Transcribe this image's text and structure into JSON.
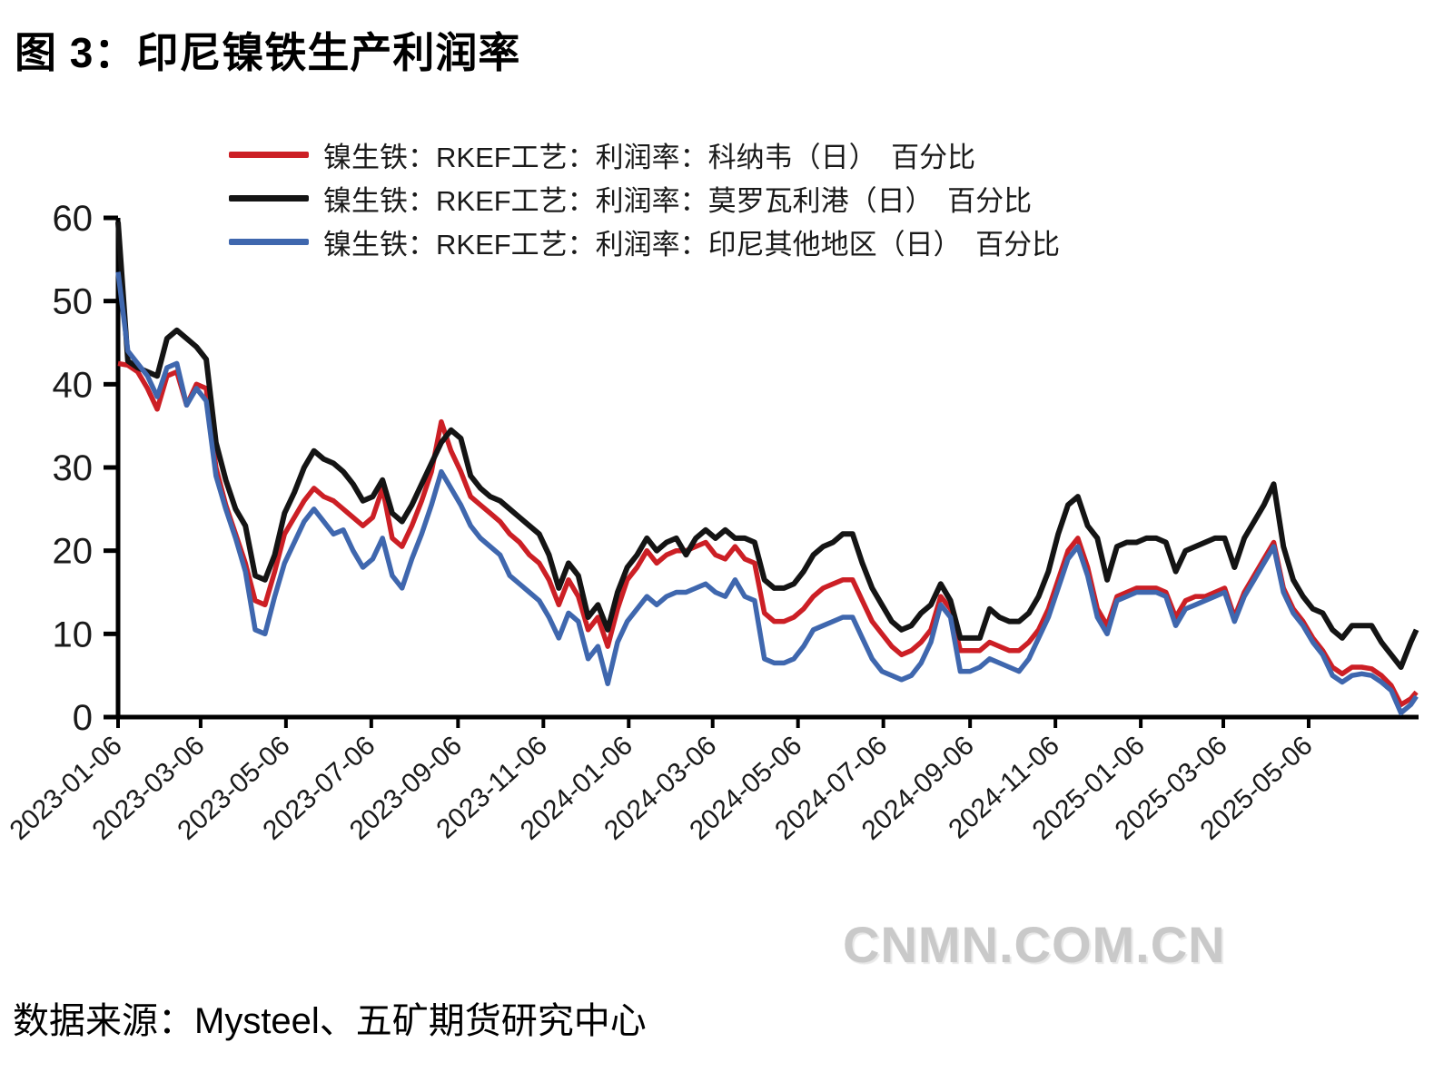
{
  "page": {
    "title": "图 3：印尼镍铁生产利润率",
    "source": "数据来源：Mysteel、五矿期货研究中心",
    "watermark": "CNMN.COM.CN"
  },
  "colors": {
    "kenawei_red": "#cc1f25",
    "morowali_black": "#141414",
    "other_blue": "#3f67ae",
    "axis": "#000000",
    "watermark_gray": "#c9c9c9"
  },
  "chart_data": {
    "type": "line",
    "title": "图 3：印尼镍铁生产利润率",
    "xlabel": "",
    "ylabel": "",
    "ylim": [
      0,
      60
    ],
    "y_ticks": [
      0,
      10,
      20,
      30,
      40,
      50,
      60
    ],
    "grid": false,
    "legend_position": "top-center",
    "x_tick_labels": [
      "2023-01-06",
      "2023-03-06",
      "2023-05-06",
      "2023-07-06",
      "2023-09-06",
      "2023-11-06",
      "2024-01-06",
      "2024-03-06",
      "2024-05-06",
      "2024-07-06",
      "2024-09-06",
      "2024-11-06",
      "2025-01-06",
      "2025-03-06",
      "2025-05-06"
    ],
    "x": [
      "2023-01-06",
      "2023-01-13",
      "2023-01-20",
      "2023-01-27",
      "2023-02-03",
      "2023-02-10",
      "2023-02-17",
      "2023-02-24",
      "2023-03-03",
      "2023-03-10",
      "2023-03-17",
      "2023-03-24",
      "2023-03-31",
      "2023-04-07",
      "2023-04-14",
      "2023-04-21",
      "2023-04-28",
      "2023-05-05",
      "2023-05-12",
      "2023-05-19",
      "2023-05-26",
      "2023-06-02",
      "2023-06-09",
      "2023-06-16",
      "2023-06-23",
      "2023-06-30",
      "2023-07-07",
      "2023-07-14",
      "2023-07-21",
      "2023-07-28",
      "2023-08-04",
      "2023-08-11",
      "2023-08-18",
      "2023-08-25",
      "2023-09-01",
      "2023-09-08",
      "2023-09-15",
      "2023-09-22",
      "2023-09-29",
      "2023-10-06",
      "2023-10-13",
      "2023-10-20",
      "2023-10-27",
      "2023-11-03",
      "2023-11-10",
      "2023-11-17",
      "2023-11-24",
      "2023-12-01",
      "2023-12-08",
      "2023-12-15",
      "2023-12-22",
      "2023-12-29",
      "2024-01-05",
      "2024-01-12",
      "2024-01-19",
      "2024-01-26",
      "2024-02-02",
      "2024-02-09",
      "2024-02-16",
      "2024-02-23",
      "2024-03-01",
      "2024-03-08",
      "2024-03-15",
      "2024-03-22",
      "2024-03-29",
      "2024-04-05",
      "2024-04-12",
      "2024-04-19",
      "2024-04-26",
      "2024-05-03",
      "2024-05-10",
      "2024-05-17",
      "2024-05-24",
      "2024-05-31",
      "2024-06-07",
      "2024-06-14",
      "2024-06-21",
      "2024-06-28",
      "2024-07-05",
      "2024-07-12",
      "2024-07-19",
      "2024-07-26",
      "2024-08-02",
      "2024-08-09",
      "2024-08-16",
      "2024-08-23",
      "2024-08-30",
      "2024-09-06",
      "2024-09-13",
      "2024-09-20",
      "2024-09-27",
      "2024-10-04",
      "2024-10-11",
      "2024-10-18",
      "2024-10-25",
      "2024-11-01",
      "2024-11-08",
      "2024-11-15",
      "2024-11-22",
      "2024-11-29",
      "2024-12-06",
      "2024-12-13",
      "2024-12-20",
      "2024-12-27",
      "2025-01-03",
      "2025-01-10",
      "2025-01-17",
      "2025-01-24",
      "2025-01-31",
      "2025-02-07",
      "2025-02-14",
      "2025-02-21",
      "2025-02-28",
      "2025-03-07",
      "2025-03-14",
      "2025-03-21",
      "2025-03-28",
      "2025-04-04",
      "2025-04-11",
      "2025-04-18",
      "2025-04-25",
      "2025-05-02",
      "2025-05-09",
      "2025-05-16",
      "2025-05-23",
      "2025-05-30",
      "2025-06-06",
      "2025-06-13",
      "2025-06-20",
      "2025-06-27",
      "2025-07-04",
      "2025-07-11",
      "2025-07-18",
      "2025-07-22"
    ],
    "series": [
      {
        "name": "镍生铁：RKEF工艺：利润率：科纳韦（日）　百分比",
        "color_key": "kenawei_red",
        "color": "#cc1f25",
        "values": [
          42.5,
          42.3,
          41.5,
          39.5,
          37,
          41,
          41.5,
          37.5,
          40,
          39.5,
          30,
          25.5,
          22,
          18.5,
          14,
          13.5,
          17.5,
          22,
          24,
          26,
          27.5,
          26.5,
          26,
          25,
          24,
          23,
          24,
          27.5,
          21.5,
          20.5,
          23,
          26,
          29.5,
          35.5,
          32,
          29.5,
          26.5,
          25.5,
          24.5,
          23.5,
          22,
          21,
          19.5,
          18.5,
          16.5,
          13.5,
          16.5,
          14.5,
          10.5,
          12,
          8.5,
          13,
          16.5,
          18,
          20,
          18.5,
          19.5,
          20,
          20,
          20.5,
          21,
          19.5,
          19,
          20.5,
          19,
          18.5,
          12.5,
          11.5,
          11.5,
          12,
          13,
          14.5,
          15.5,
          16,
          16.5,
          16.5,
          14,
          11.5,
          10,
          8.5,
          7.5,
          8,
          9,
          10.5,
          14.5,
          13,
          8,
          8,
          8,
          9,
          8.5,
          8,
          8,
          9,
          10.5,
          13,
          16.5,
          20,
          21.5,
          18,
          13,
          11,
          14.5,
          15,
          15.5,
          15.5,
          15.5,
          15,
          12,
          14,
          14.5,
          14.5,
          15,
          15.5,
          12,
          15,
          17,
          19,
          21,
          15.5,
          13,
          11.5,
          9.5,
          8,
          6,
          5.2,
          6,
          6,
          5.8,
          5,
          3.8,
          1.5,
          2.2,
          3
        ]
      },
      {
        "name": "镍生铁：RKEF工艺：利润率：莫罗瓦利港（日）　百分比",
        "color_key": "morowali_black",
        "color": "#141414",
        "values": [
          59.5,
          42.8,
          42,
          41.5,
          41,
          45.5,
          46.5,
          45.5,
          44.5,
          43,
          33,
          28.5,
          25,
          23,
          17,
          16.5,
          19.5,
          24.5,
          27,
          30,
          32,
          31,
          30.5,
          29.5,
          28,
          26,
          26.5,
          28.5,
          24.5,
          23.5,
          25.5,
          28,
          30.5,
          33,
          34.5,
          33.5,
          29,
          27.5,
          26.5,
          26,
          25,
          24,
          23,
          22,
          19.5,
          15.5,
          18.5,
          17,
          12,
          13.5,
          10.5,
          15,
          18,
          19.5,
          21.5,
          20,
          21,
          21.5,
          19.5,
          21.5,
          22.5,
          21.5,
          22.5,
          21.5,
          21.5,
          21,
          16.5,
          15.5,
          15.5,
          16,
          17.5,
          19.5,
          20.5,
          21,
          22,
          22,
          18.5,
          15.5,
          13.5,
          11.5,
          10.5,
          11,
          12.5,
          13.5,
          16,
          14,
          9.5,
          9.5,
          9.5,
          13,
          12,
          11.5,
          11.5,
          12.5,
          14.5,
          17.5,
          22,
          25.5,
          26.5,
          23,
          21.5,
          16.5,
          20.5,
          21,
          21,
          21.5,
          21.5,
          21,
          17.5,
          20,
          20.5,
          21,
          21.5,
          21.5,
          18,
          21.5,
          23.5,
          25.5,
          28,
          20.5,
          16.5,
          14.5,
          13,
          12.5,
          10.5,
          9.5,
          11,
          11,
          11,
          9,
          7.5,
          6,
          9,
          10.5
        ]
      },
      {
        "name": "镍生铁：RKEF工艺：利润率：印尼其他地区（日）　百分比",
        "color_key": "other_blue",
        "color": "#3f67ae",
        "values": [
          53.5,
          44,
          42.5,
          41,
          38.5,
          42,
          42.5,
          37.5,
          39.5,
          38,
          29,
          25,
          21.5,
          17.5,
          10.5,
          10,
          14.5,
          18.5,
          21,
          23.5,
          25,
          23.5,
          22,
          22.5,
          20,
          18,
          19,
          21.5,
          17,
          15.5,
          19,
          22,
          25.5,
          29.5,
          27.5,
          25.5,
          23,
          21.5,
          20.5,
          19.5,
          17,
          16,
          15,
          14,
          12,
          9.5,
          12.5,
          11.5,
          7,
          8.5,
          4,
          9,
          11.5,
          13,
          14.5,
          13.5,
          14.5,
          15,
          15,
          15.5,
          16,
          15,
          14.5,
          16.5,
          14.5,
          14,
          7,
          6.5,
          6.5,
          7,
          8.5,
          10.5,
          11,
          11.5,
          12,
          12,
          9.5,
          7,
          5.5,
          5,
          4.5,
          5,
          6.5,
          9,
          13.5,
          12,
          5.5,
          5.5,
          6,
          7,
          6.5,
          6,
          5.5,
          7,
          9.5,
          12,
          15.5,
          19,
          20.5,
          17,
          12,
          10,
          14,
          14.5,
          15,
          15,
          15,
          14.5,
          11,
          13,
          13.5,
          14,
          14.5,
          15,
          11.5,
          14.5,
          16.5,
          18.5,
          20.5,
          15,
          12.5,
          11,
          9,
          7.5,
          5,
          4.2,
          5,
          5.2,
          5,
          4.2,
          3.2,
          0.5,
          1.5,
          2.5
        ]
      }
    ]
  }
}
